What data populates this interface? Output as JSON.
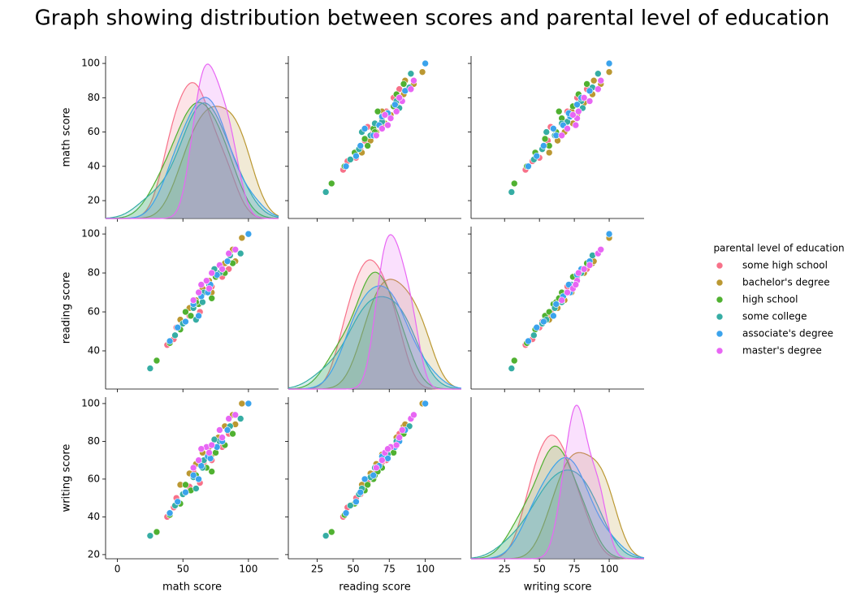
{
  "chart_data": {
    "type": "pairplot",
    "title": "Graph showing distribution between scores and parental level of education",
    "legend_title": "parental level of education",
    "legend_position": "right",
    "variables": [
      {
        "name": "math score",
        "xlim": [
          -9,
          123
        ],
        "xticks": [
          0,
          50,
          100
        ],
        "ylim": [
          9.6,
          104.3
        ],
        "yticks": [
          20,
          40,
          60,
          80,
          100
        ]
      },
      {
        "name": "reading score",
        "xlim": [
          5,
          125
        ],
        "xticks": [
          25,
          50,
          75,
          100
        ],
        "ylim": [
          20.4,
          103.8
        ],
        "yticks": [
          40,
          60,
          80,
          100
        ]
      },
      {
        "name": "writing score",
        "xlim": [
          1,
          125
        ],
        "xticks": [
          25,
          50,
          75,
          100
        ],
        "ylim": [
          17.8,
          103.4
        ],
        "yticks": [
          20,
          40,
          60,
          80,
          100
        ]
      }
    ],
    "series": [
      {
        "name": "some high school",
        "color": "#f77189",
        "values": [
          [
            45,
            52,
            50
          ],
          [
            60,
            64,
            62
          ],
          [
            72,
            73,
            70
          ],
          [
            55,
            58,
            56
          ],
          [
            38,
            43,
            40
          ],
          [
            66,
            70,
            69
          ],
          [
            80,
            78,
            77
          ],
          [
            50,
            55,
            52
          ],
          [
            63,
            60,
            58
          ],
          [
            85,
            82,
            84
          ],
          [
            43,
            46,
            45
          ],
          [
            58,
            66,
            64
          ]
        ]
      },
      {
        "name": "bachelor's degree",
        "color": "#bb9832",
        "values": [
          [
            70,
            76,
            77
          ],
          [
            88,
            92,
            94
          ],
          [
            55,
            62,
            63
          ],
          [
            77,
            80,
            82
          ],
          [
            65,
            72,
            74
          ],
          [
            95,
            98,
            100
          ],
          [
            48,
            56,
            57
          ],
          [
            82,
            85,
            88
          ],
          [
            60,
            66,
            68
          ],
          [
            72,
            70,
            73
          ],
          [
            90,
            86,
            89
          ],
          [
            100,
            100,
            100
          ]
        ]
      },
      {
        "name": "high school",
        "color": "#50b131",
        "values": [
          [
            62,
            64,
            60
          ],
          [
            48,
            51,
            47
          ],
          [
            75,
            78,
            74
          ],
          [
            56,
            58,
            54
          ],
          [
            68,
            70,
            66
          ],
          [
            40,
            44,
            41
          ],
          [
            82,
            80,
            78
          ],
          [
            30,
            35,
            32
          ],
          [
            60,
            65,
            62
          ],
          [
            88,
            85,
            84
          ],
          [
            52,
            60,
            57
          ],
          [
            72,
            67,
            64
          ]
        ]
      },
      {
        "name": "some college",
        "color": "#36ada4",
        "values": [
          [
            66,
            70,
            70
          ],
          [
            50,
            54,
            52
          ],
          [
            78,
            80,
            80
          ],
          [
            58,
            62,
            61
          ],
          [
            70,
            74,
            73
          ],
          [
            25,
            31,
            30
          ],
          [
            86,
            89,
            88
          ],
          [
            60,
            56,
            55
          ],
          [
            74,
            82,
            81
          ],
          [
            44,
            48,
            46
          ],
          [
            94,
            90,
            92
          ],
          [
            65,
            65,
            66
          ]
        ]
      },
      {
        "name": "associate's degree",
        "color": "#3ba3ec",
        "values": [
          [
            64,
            68,
            67
          ],
          [
            52,
            55,
            53
          ],
          [
            76,
            79,
            77
          ],
          [
            69,
            70,
            72
          ],
          [
            40,
            45,
            42
          ],
          [
            84,
            86,
            86
          ],
          [
            58,
            64,
            62
          ],
          [
            71,
            74,
            71
          ],
          [
            100,
            100,
            100
          ],
          [
            46,
            52,
            48
          ],
          [
            62,
            58,
            60
          ],
          [
            80,
            82,
            80
          ]
        ]
      },
      {
        "name": "master's degree",
        "color": "#e866f4",
        "values": [
          [
            68,
            76,
            77
          ],
          [
            78,
            84,
            86
          ],
          [
            62,
            70,
            70
          ],
          [
            85,
            90,
            92
          ],
          [
            72,
            80,
            78
          ],
          [
            58,
            66,
            66
          ],
          [
            90,
            92,
            94
          ],
          [
            70,
            72,
            74
          ],
          [
            80,
            82,
            82
          ],
          [
            64,
            74,
            76
          ]
        ]
      }
    ]
  }
}
